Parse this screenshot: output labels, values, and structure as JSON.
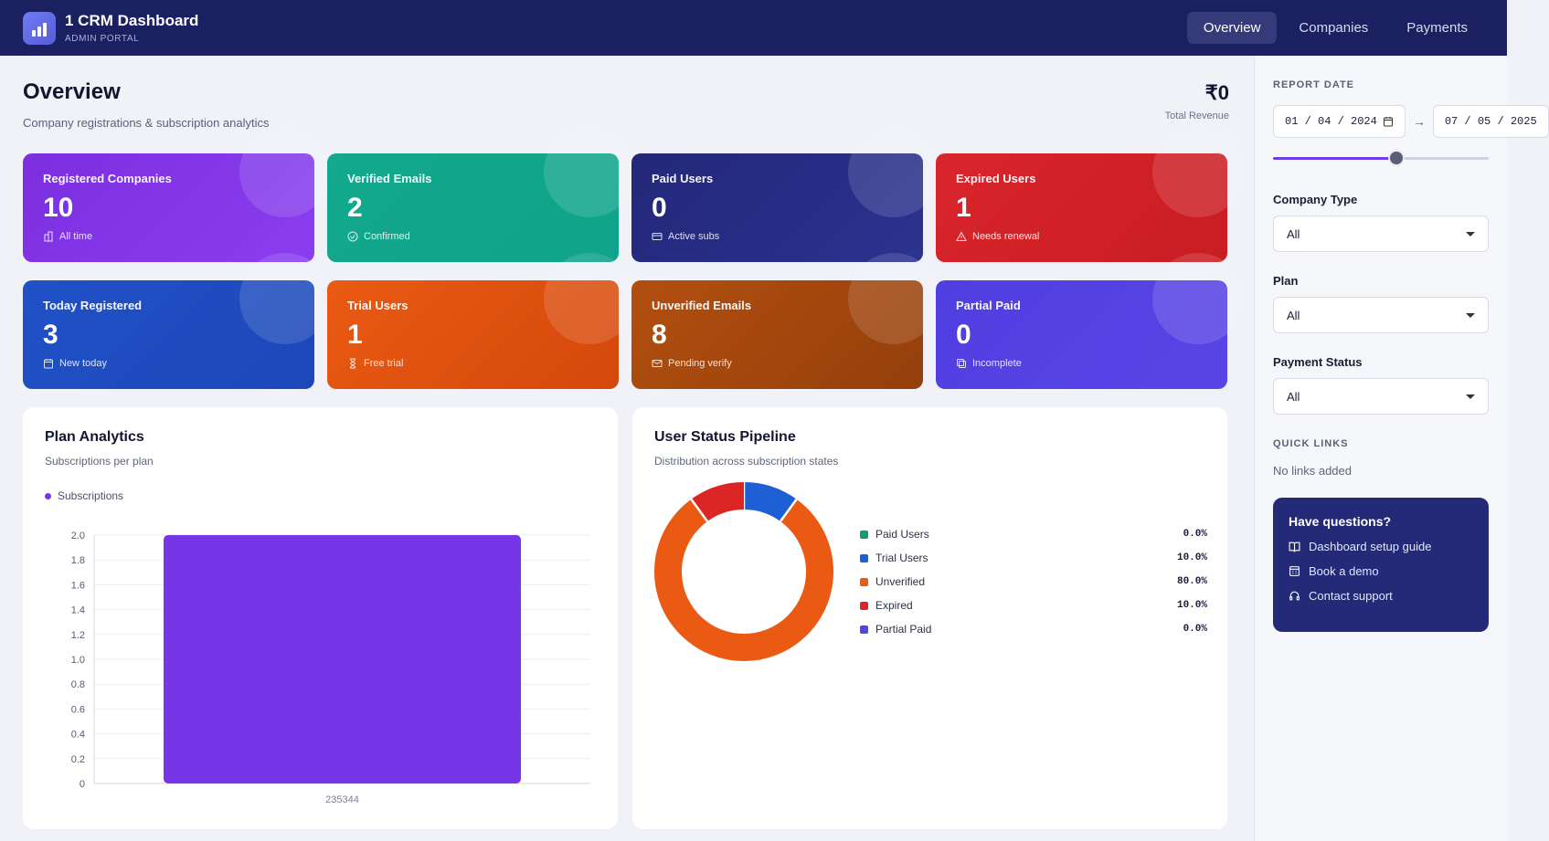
{
  "header": {
    "title": "1 CRM Dashboard",
    "subtitle": "ADMIN PORTAL",
    "nav": [
      "Overview",
      "Companies",
      "Payments"
    ],
    "active_nav": "Overview"
  },
  "page": {
    "title": "Overview",
    "subtitle": "Company registrations & subscription analytics",
    "revenue_value": "₹0",
    "revenue_label": "Total Revenue"
  },
  "cards": [
    {
      "label": "Registered Companies",
      "value": "10",
      "sub": "All time",
      "icon": "building-icon",
      "color_from": "#7b2fe0",
      "color_to": "#8a3ef0"
    },
    {
      "label": "Verified Emails",
      "value": "2",
      "sub": "Confirmed",
      "icon": "check-circle-icon",
      "color_from": "#13a98e",
      "color_to": "#0fa38a"
    },
    {
      "label": "Paid Users",
      "value": "0",
      "sub": "Active subs",
      "icon": "credit-card-icon",
      "color_from": "#232879",
      "color_to": "#2c3290"
    },
    {
      "label": "Expired Users",
      "value": "1",
      "sub": "Needs renewal",
      "icon": "warning-icon",
      "color_from": "#d9252b",
      "color_to": "#c81d23"
    },
    {
      "label": "Today Registered",
      "value": "3",
      "sub": "New today",
      "icon": "calendar-icon",
      "color_from": "#2151c8",
      "color_to": "#1c48b8"
    },
    {
      "label": "Trial Users",
      "value": "1",
      "sub": "Free trial",
      "icon": "hourglass-icon",
      "color_from": "#ea5a13",
      "color_to": "#d4480b"
    },
    {
      "label": "Unverified Emails",
      "value": "8",
      "sub": "Pending verify",
      "icon": "mail-x-icon",
      "color_from": "#b24f0f",
      "color_to": "#953f0c"
    },
    {
      "label": "Partial Paid",
      "value": "0",
      "sub": "Incomplete",
      "icon": "partial-payment-icon",
      "color_from": "#4f3fe0",
      "color_to": "#5a44e6"
    }
  ],
  "plan_panel": {
    "title": "Plan Analytics",
    "subtitle": "Subscriptions per plan"
  },
  "pipeline_panel": {
    "title": "User Status Pipeline",
    "subtitle": "Distribution across subscription states"
  },
  "chart_data": [
    {
      "type": "bar",
      "categories": [
        "235344"
      ],
      "series": [
        {
          "name": "Subscriptions",
          "values": [
            2
          ]
        }
      ],
      "ylim": [
        0,
        2
      ],
      "yticks": [
        "0",
        "0.2",
        "0.4",
        "0.6",
        "0.8",
        "1.0",
        "1.2",
        "1.4",
        "1.6",
        "1.8",
        "2.0"
      ],
      "color": "#7636e8",
      "legend": "top-left",
      "grid": true
    },
    {
      "type": "pie",
      "donut": true,
      "labels": [
        "Paid Users",
        "Trial Users",
        "Unverified",
        "Expired",
        "Partial Paid"
      ],
      "values": [
        0,
        10,
        80,
        10,
        0
      ],
      "percent_labels": [
        "0.0%",
        "10.0%",
        "80.0%",
        "10.0%",
        "0.0%"
      ],
      "colors": [
        "#0e9f6e",
        "#1f5fd6",
        "#ea5a13",
        "#dc2626",
        "#4f46e5"
      ],
      "legend": "right"
    }
  ],
  "sidebar": {
    "report_date_label": "REPORT DATE",
    "date_from": "01 / 04 / 2024",
    "date_to": "07 / 05 / 2025",
    "date_arrow": "→",
    "range_position": 0.59,
    "company_type_label": "Company Type",
    "company_type_value": "All",
    "plan_label": "Plan",
    "plan_value": "All",
    "payment_status_label": "Payment Status",
    "payment_status_value": "All",
    "quick_links_label": "QUICK LINKS",
    "quick_links_empty": "No links added",
    "help": {
      "title": "Have questions?",
      "links": [
        "Dashboard setup guide",
        "Book a demo",
        "Contact support"
      ]
    }
  }
}
